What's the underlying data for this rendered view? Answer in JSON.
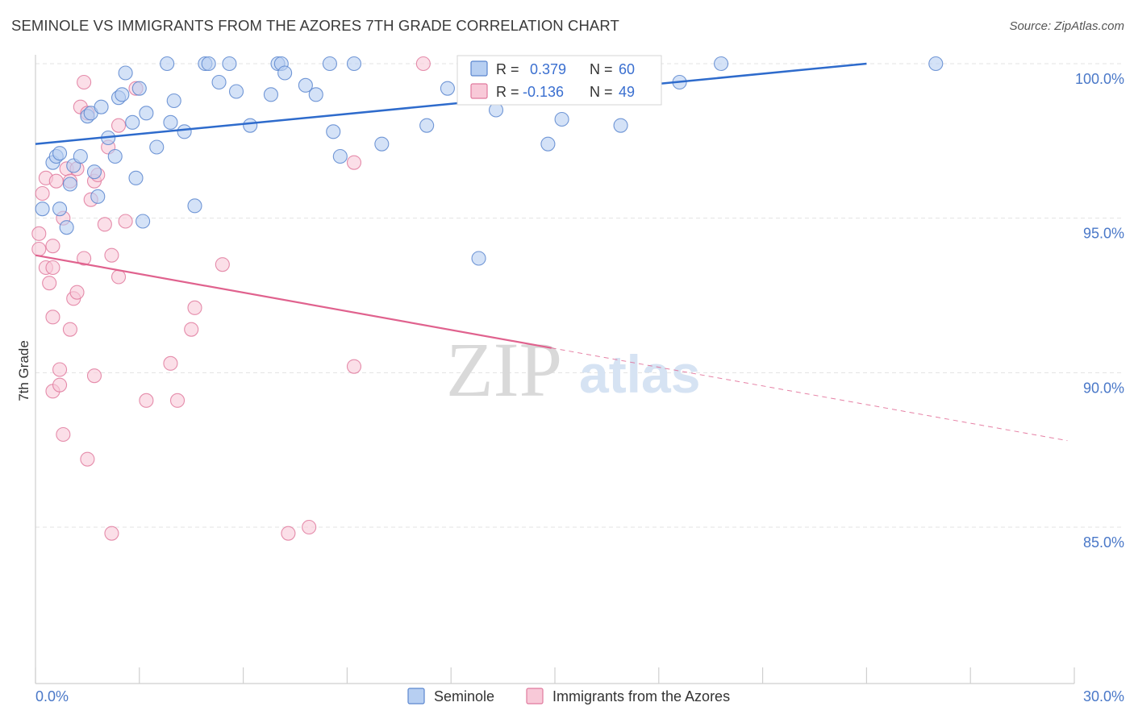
{
  "title": "SEMINOLE VS IMMIGRANTS FROM THE AZORES 7TH GRADE CORRELATION CHART",
  "source": "Source: ZipAtlas.com",
  "watermark": {
    "zip": "ZIP",
    "atlas": "atlas"
  },
  "colors": {
    "seminole_fill": "#b7cff2",
    "seminole_stroke": "#5b86cf",
    "seminole_line": "#2e6bcc",
    "azores_fill": "#f8c9d8",
    "azores_stroke": "#e07a9e",
    "azores_line": "#e0628e",
    "grid": "#e3e3e3",
    "tick_text": "#4a78c8"
  },
  "stats": [
    {
      "label_r": "R =",
      "r": "0.379",
      "label_n": "N =",
      "n": "60"
    },
    {
      "label_r": "R =",
      "r": "-0.136",
      "label_n": "N =",
      "n": "49"
    }
  ],
  "chart_data": {
    "type": "scatter",
    "title": "SEMINOLE VS IMMIGRANTS FROM THE AZORES 7TH GRADE CORRELATION CHART",
    "xlabel": "",
    "ylabel": "7th Grade",
    "xlim": [
      0,
      30
    ],
    "ylim": [
      80,
      100.8
    ],
    "x_tick_labels": [
      "0.0%",
      "30.0%"
    ],
    "y_ticks": [
      85,
      90,
      95,
      100
    ],
    "y_tick_labels": [
      "85.0%",
      "90.0%",
      "95.0%",
      "100.0%"
    ],
    "grid": true,
    "legend_position": "bottom-center",
    "series": [
      {
        "name": "Seminole",
        "trend": {
          "x0": 0,
          "y0": 97.4,
          "x1": 24.0,
          "y1": 100.0,
          "dashed_to": null
        },
        "points": [
          [
            0.2,
            95.3
          ],
          [
            0.5,
            96.8
          ],
          [
            0.6,
            97.0
          ],
          [
            0.7,
            97.1
          ],
          [
            0.7,
            95.3
          ],
          [
            0.9,
            94.7
          ],
          [
            1.0,
            96.1
          ],
          [
            1.1,
            96.7
          ],
          [
            1.3,
            97.0
          ],
          [
            1.5,
            98.3
          ],
          [
            1.6,
            98.4
          ],
          [
            1.7,
            96.5
          ],
          [
            1.8,
            95.7
          ],
          [
            1.9,
            98.6
          ],
          [
            2.1,
            97.6
          ],
          [
            2.3,
            97.0
          ],
          [
            2.4,
            98.9
          ],
          [
            2.5,
            99.0
          ],
          [
            2.6,
            99.7
          ],
          [
            2.8,
            98.1
          ],
          [
            2.9,
            96.3
          ],
          [
            3.0,
            99.2
          ],
          [
            3.1,
            94.9
          ],
          [
            3.2,
            98.4
          ],
          [
            3.5,
            97.3
          ],
          [
            3.8,
            100.0
          ],
          [
            3.9,
            98.1
          ],
          [
            4.0,
            98.8
          ],
          [
            4.3,
            97.8
          ],
          [
            4.6,
            95.4
          ],
          [
            4.9,
            100.0
          ],
          [
            5.0,
            100.0
          ],
          [
            5.3,
            99.4
          ],
          [
            5.6,
            100.0
          ],
          [
            5.8,
            99.1
          ],
          [
            6.2,
            98.0
          ],
          [
            6.8,
            99.0
          ],
          [
            7.0,
            100.0
          ],
          [
            7.1,
            100.0
          ],
          [
            7.2,
            99.7
          ],
          [
            7.8,
            99.3
          ],
          [
            8.1,
            99.0
          ],
          [
            8.5,
            100.0
          ],
          [
            8.6,
            97.8
          ],
          [
            8.8,
            97.0
          ],
          [
            9.2,
            100.0
          ],
          [
            10.0,
            97.4
          ],
          [
            11.3,
            98.0
          ],
          [
            11.9,
            99.2
          ],
          [
            12.8,
            93.7
          ],
          [
            13.0,
            99.4
          ],
          [
            13.3,
            98.5
          ],
          [
            14.8,
            97.4
          ],
          [
            15.2,
            98.2
          ],
          [
            16.0,
            99.8
          ],
          [
            16.9,
            98.0
          ],
          [
            18.6,
            99.4
          ],
          [
            19.8,
            100.0
          ],
          [
            26.0,
            100.0
          ],
          [
            15.0,
            99.5
          ]
        ]
      },
      {
        "name": "Immigrants from the Azores",
        "trend": {
          "x0": 0,
          "y0": 93.8,
          "x1": 14.9,
          "y1": 90.8,
          "dashed_to": {
            "x": 29.8,
            "y": 87.8
          }
        },
        "points": [
          [
            0.1,
            94.5
          ],
          [
            0.1,
            94.0
          ],
          [
            0.2,
            95.8
          ],
          [
            0.3,
            93.4
          ],
          [
            0.3,
            96.3
          ],
          [
            0.4,
            92.9
          ],
          [
            0.5,
            93.4
          ],
          [
            0.5,
            91.8
          ],
          [
            0.5,
            94.1
          ],
          [
            0.5,
            89.4
          ],
          [
            0.6,
            96.2
          ],
          [
            0.7,
            89.6
          ],
          [
            0.7,
            90.1
          ],
          [
            0.8,
            88.0
          ],
          [
            0.8,
            95.0
          ],
          [
            0.9,
            96.6
          ],
          [
            1.0,
            96.2
          ],
          [
            1.0,
            91.4
          ],
          [
            1.1,
            92.4
          ],
          [
            1.2,
            92.6
          ],
          [
            1.2,
            96.6
          ],
          [
            1.3,
            98.6
          ],
          [
            1.4,
            99.4
          ],
          [
            1.4,
            93.7
          ],
          [
            1.5,
            87.2
          ],
          [
            1.5,
            98.4
          ],
          [
            1.6,
            95.6
          ],
          [
            1.7,
            96.2
          ],
          [
            1.7,
            89.9
          ],
          [
            1.8,
            96.4
          ],
          [
            2.0,
            94.8
          ],
          [
            2.1,
            97.3
          ],
          [
            2.2,
            84.8
          ],
          [
            2.2,
            93.8
          ],
          [
            2.4,
            93.1
          ],
          [
            2.4,
            98.0
          ],
          [
            2.6,
            94.9
          ],
          [
            2.9,
            99.2
          ],
          [
            3.2,
            89.1
          ],
          [
            3.9,
            90.3
          ],
          [
            4.1,
            89.1
          ],
          [
            4.5,
            91.4
          ],
          [
            4.6,
            92.1
          ],
          [
            5.4,
            93.5
          ],
          [
            7.3,
            84.8
          ],
          [
            7.9,
            85.0
          ],
          [
            9.2,
            96.8
          ],
          [
            9.2,
            90.2
          ],
          [
            11.2,
            100.0
          ]
        ]
      }
    ]
  },
  "legend": [
    {
      "label": "Seminole"
    },
    {
      "label": "Immigrants from the Azores"
    }
  ]
}
